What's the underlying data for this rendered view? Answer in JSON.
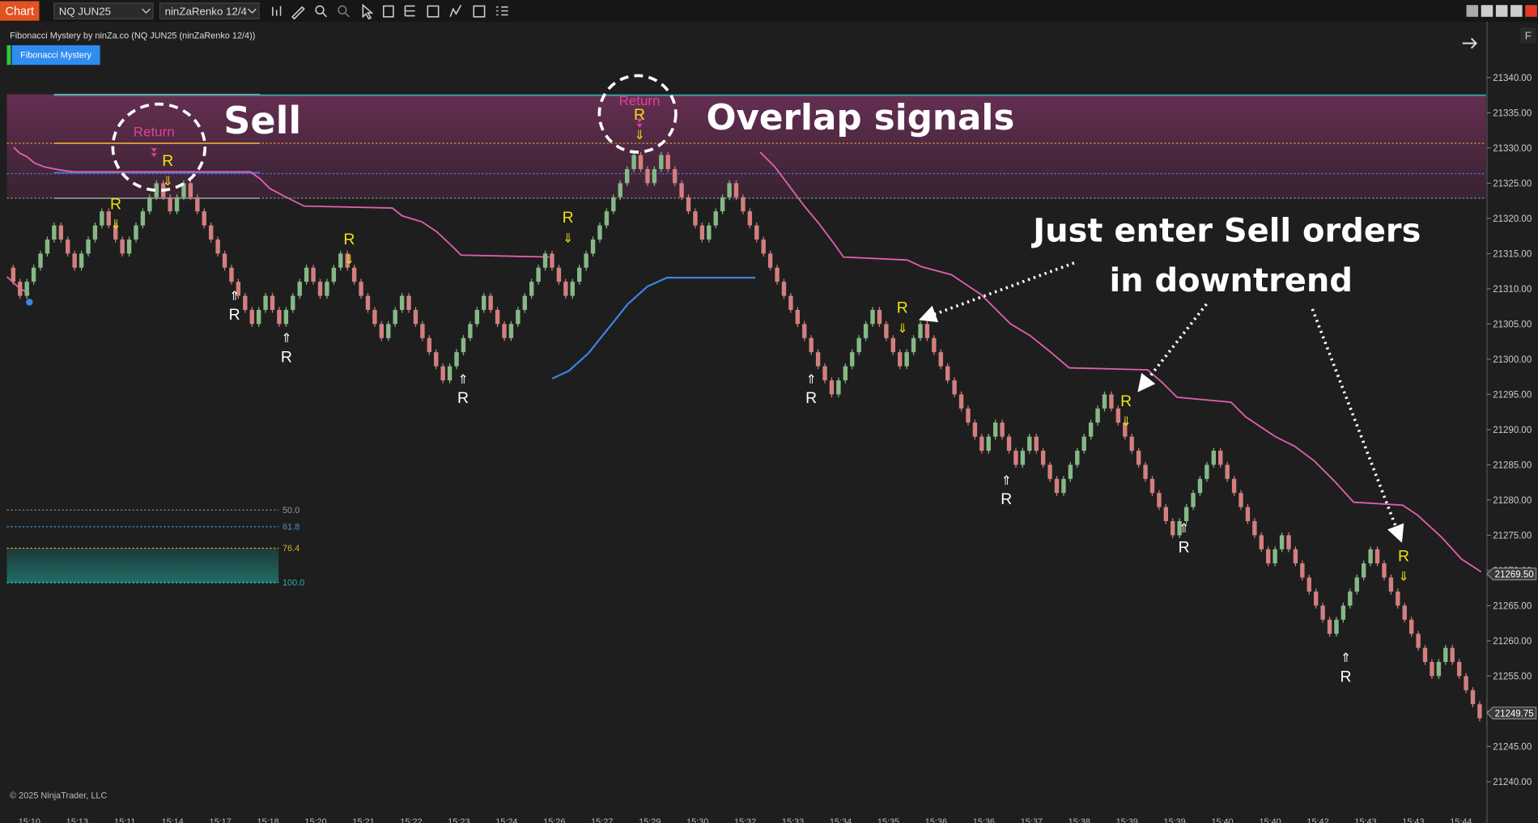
{
  "toolbar": {
    "chart_button": "Chart",
    "instrument": "NQ JUN25",
    "bar_type": "ninZaRenko 12/4"
  },
  "indicator_header": "Fibonacci Mystery by ninZa.co (NQ JUN25 (ninZaRenko 12/4))",
  "indicator_button": "Fibonacci Mystery",
  "copyright": "© 2025 NinjaTrader, LLC",
  "axis_button": "F",
  "annotations": {
    "sell": "Sell",
    "overlap": "Overlap signals",
    "enter_1": "Just enter Sell orders",
    "enter_2": "in downtrend",
    "return_1": "Return",
    "return_2": "Return"
  },
  "fib_levels": [
    "50.0",
    "61.8",
    "76.4",
    "100.0"
  ],
  "chart_data": {
    "type": "renko",
    "ylim": [
      21236,
      21347
    ],
    "yticks": [
      {
        "value": 21240,
        "label": "21240.00"
      },
      {
        "value": 21245,
        "label": "21245.00"
      },
      {
        "value": 21250,
        "label": "21250.00"
      },
      {
        "value": 21255,
        "label": "21255.00"
      },
      {
        "value": 21260,
        "label": "21260.00"
      },
      {
        "value": 21265,
        "label": "21265.00"
      },
      {
        "value": 21270,
        "label": "21270.00"
      },
      {
        "value": 21275,
        "label": "21275.00"
      },
      {
        "value": 21280,
        "label": "21280.00"
      },
      {
        "value": 21285,
        "label": "21285.00"
      },
      {
        "value": 21290,
        "label": "21290.00"
      },
      {
        "value": 21295,
        "label": "21295.00"
      },
      {
        "value": 21300,
        "label": "21300.00"
      },
      {
        "value": 21305,
        "label": "21305.00"
      },
      {
        "value": 21310,
        "label": "21310.00"
      },
      {
        "value": 21315,
        "label": "21315.00"
      },
      {
        "value": 21320,
        "label": "21320.00"
      },
      {
        "value": 21325,
        "label": "21325.00"
      },
      {
        "value": 21330,
        "label": "21330.00"
      },
      {
        "value": 21335,
        "label": "21335.00"
      },
      {
        "value": 21340,
        "label": "21340.00"
      }
    ],
    "xticks": [
      "15:10",
      "15:13",
      "15:11",
      "15:14",
      "15:17",
      "15:18",
      "15:20",
      "15:21",
      "15:22",
      "15:23",
      "15:24",
      "15:26",
      "15:27",
      "15:29",
      "15:30",
      "15:32",
      "15:33",
      "15:34",
      "15:35",
      "15:36",
      "15:36",
      "15:37",
      "15:38",
      "15:39",
      "15:39",
      "15:40",
      "15:40",
      "15:42",
      "15:43",
      "15:43",
      "15:44"
    ],
    "up_color": "#86b886",
    "down_color": "#d27f7f",
    "open": 21313,
    "closes": [
      21311,
      21309,
      21311,
      21313,
      21315,
      21317,
      21319,
      21317,
      21315,
      21313,
      21315,
      21317,
      21319,
      21321,
      21319,
      21317,
      21315,
      21317,
      21319,
      21321,
      21323,
      21325,
      21323,
      21321,
      21323,
      21325,
      21323,
      21321,
      21319,
      21317,
      21315,
      21313,
      21311,
      21309,
      21307,
      21305,
      21307,
      21309,
      21307,
      21305,
      21307,
      21309,
      21311,
      21313,
      21311,
      21309,
      21311,
      21313,
      21315,
      21313,
      21311,
      21309,
      21307,
      21305,
      21303,
      21305,
      21307,
      21309,
      21307,
      21305,
      21303,
      21301,
      21299,
      21297,
      21299,
      21301,
      21303,
      21305,
      21307,
      21309,
      21307,
      21305,
      21303,
      21305,
      21307,
      21309,
      21311,
      21313,
      21315,
      21313,
      21311,
      21309,
      21311,
      21313,
      21315,
      21317,
      21319,
      21321,
      21323,
      21325,
      21327,
      21329,
      21327,
      21325,
      21327,
      21329,
      21327,
      21325,
      21323,
      21321,
      21319,
      21317,
      21319,
      21321,
      21323,
      21325,
      21323,
      21321,
      21319,
      21317,
      21315,
      21313,
      21311,
      21309,
      21307,
      21305,
      21303,
      21301,
      21299,
      21297,
      21295,
      21297,
      21299,
      21301,
      21303,
      21305,
      21307,
      21305,
      21303,
      21301,
      21299,
      21301,
      21303,
      21305,
      21303,
      21301,
      21299,
      21297,
      21295,
      21293,
      21291,
      21289,
      21287,
      21289,
      21291,
      21289,
      21287,
      21285,
      21287,
      21289,
      21287,
      21285,
      21283,
      21281,
      21283,
      21285,
      21287,
      21289,
      21291,
      21293,
      21295,
      21293,
      21291,
      21289,
      21287,
      21285,
      21283,
      21281,
      21279,
      21277,
      21275,
      21277,
      21279,
      21281,
      21283,
      21285,
      21287,
      21285,
      21283,
      21281,
      21279,
      21277,
      21275,
      21273,
      21271,
      21273,
      21275,
      21273,
      21271,
      21269,
      21267,
      21265,
      21263,
      21261,
      21263,
      21265,
      21267,
      21269,
      21271,
      21273,
      21271,
      21269,
      21267,
      21265,
      21263,
      21261,
      21259,
      21257,
      21255,
      21257,
      21259,
      21257,
      21255,
      21253,
      21251,
      21249
    ],
    "price_markers": [
      {
        "value": 21269.5,
        "label": "21269.50"
      },
      {
        "value": 21249.75,
        "label": "21249.75"
      }
    ],
    "sell_signals": [
      {
        "label": "R",
        "arrow": "⇓"
      },
      {
        "label": "R",
        "arrow": "⇓"
      },
      {
        "label": "R",
        "arrow": "⇓"
      },
      {
        "label": "R",
        "arrow": "⇓"
      },
      {
        "label": "R",
        "arrow": "⇓"
      },
      {
        "label": "R",
        "arrow": "⇓"
      },
      {
        "label": "R",
        "arrow": "⇓"
      },
      {
        "label": "R",
        "arrow": "⇓"
      }
    ],
    "buy_signals": [
      {
        "arrow": "⇑",
        "label": "R"
      },
      {
        "arrow": "⇑",
        "label": "R"
      },
      {
        "arrow": "⇑",
        "label": "R"
      },
      {
        "arrow": "⇑",
        "label": "R"
      },
      {
        "arrow": "⇑",
        "label": "R"
      },
      {
        "arrow": "⇑",
        "label": "R"
      },
      {
        "arrow": "⇑",
        "label": "R"
      }
    ]
  }
}
